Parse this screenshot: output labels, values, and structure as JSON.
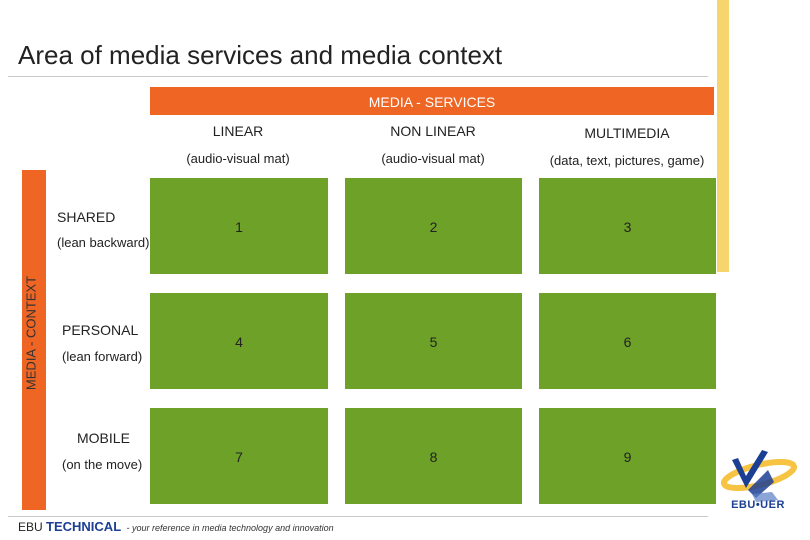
{
  "title": "Area of media services and media context",
  "services_header": "MEDIA - SERVICES",
  "context_header": "MEDIA - CONTEXT",
  "columns": [
    {
      "label": "LINEAR",
      "sub": "(audio-visual mat)"
    },
    {
      "label": "NON LINEAR",
      "sub": "(audio-visual mat)"
    },
    {
      "label": "MULTIMEDIA",
      "sub": "(data, text, pictures, game)"
    }
  ],
  "rows": [
    {
      "label": "SHARED",
      "sub": "(lean backward)"
    },
    {
      "label": "PERSONAL",
      "sub": "(lean forward)"
    },
    {
      "label": "MOBILE",
      "sub": "(on the move)"
    }
  ],
  "cells": [
    "1",
    "2",
    "3",
    "4",
    "5",
    "6",
    "7",
    "8",
    "9"
  ],
  "footer": {
    "org": "EBU",
    "dept": "TECHNICAL",
    "tagline": "- your reference in media technology and innovation"
  },
  "logo": {
    "text": "EBU•UER"
  },
  "colors": {
    "accent_orange": "#ee6524",
    "cell_green": "#6ea128",
    "band_yellow": "#f6d56f",
    "brand_blue": "#1c3f94"
  }
}
